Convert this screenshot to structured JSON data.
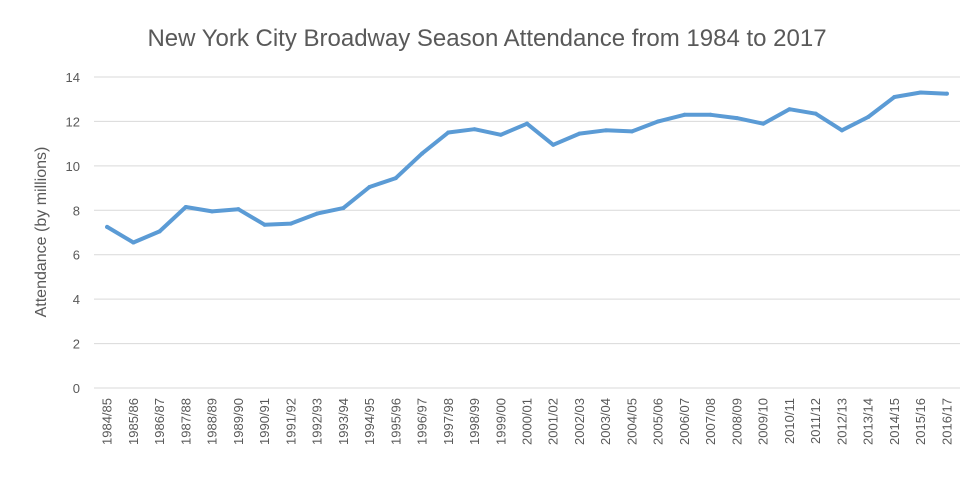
{
  "chart_data": {
    "type": "line",
    "title": "New York City Broadway Season Attendance from 1984 to 2017",
    "xlabel": "",
    "ylabel": "Attendance (by millions)",
    "ylim": [
      0,
      14
    ],
    "yticks": [
      "0",
      "2",
      "4",
      "6",
      "8",
      "10",
      "12",
      "14"
    ],
    "grid": true,
    "legend": "none",
    "categories": [
      "1984/85",
      "1985/86",
      "1986/87",
      "1987/88",
      "1988/89",
      "1989/90",
      "1990/91",
      "1991/92",
      "1992/93",
      "1993/94",
      "1994/95",
      "1995/96",
      "1996/97",
      "1997/98",
      "1998/99",
      "1999/00",
      "2000/01",
      "2001/02",
      "2002/03",
      "2003/04",
      "2004/05",
      "2005/06",
      "2006/07",
      "2007/08",
      "2008/09",
      "2009/10",
      "2010/11",
      "2011/12",
      "2012/13",
      "2013/14",
      "2014/15",
      "2015/16",
      "2016/17"
    ],
    "series": [
      {
        "color": "#5b9bd5",
        "values": [
          7.25,
          6.55,
          7.05,
          8.15,
          7.95,
          8.05,
          7.35,
          7.4,
          7.85,
          8.1,
          9.05,
          9.45,
          10.55,
          11.5,
          11.65,
          11.4,
          11.9,
          10.95,
          11.45,
          11.6,
          11.55,
          12.0,
          12.3,
          12.3,
          12.15,
          11.9,
          12.55,
          12.35,
          11.6,
          12.2,
          13.1,
          13.3,
          13.25
        ]
      }
    ]
  }
}
